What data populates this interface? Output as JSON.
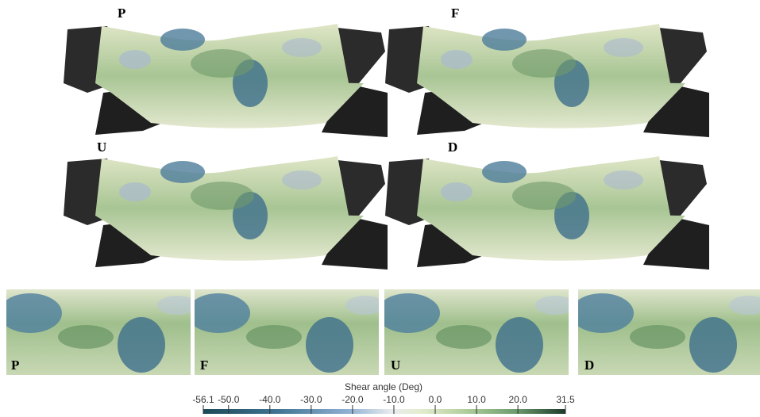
{
  "figure_panels": [
    "P",
    "F",
    "U",
    "D"
  ],
  "crop_panels": [
    "P",
    "F",
    "U",
    "D"
  ],
  "colorbar": {
    "title": "Shear angle (Deg)",
    "lim": [
      -56.1,
      31.5
    ],
    "ticks": [
      {
        "value": -56.1,
        "label": "-56.1"
      },
      {
        "value": -50,
        "label": "-50.0"
      },
      {
        "value": -40,
        "label": "-40.0"
      },
      {
        "value": -30,
        "label": "-30.0"
      },
      {
        "value": -20,
        "label": "-20.0"
      },
      {
        "value": -10,
        "label": "-10.0"
      },
      {
        "value": 0,
        "label": "0.0"
      },
      {
        "value": 10,
        "label": "10.0"
      },
      {
        "value": 20,
        "label": "20.0"
      },
      {
        "value": 31.5,
        "label": "31.5"
      }
    ]
  }
}
